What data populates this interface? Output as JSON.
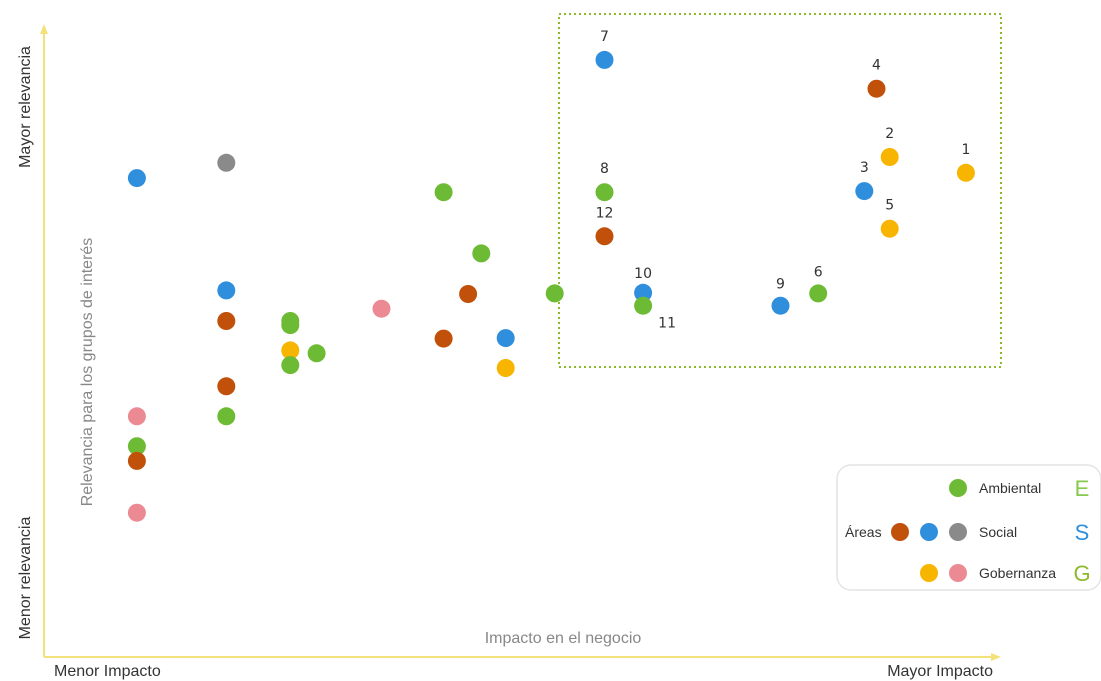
{
  "chart_data": {
    "type": "scatter",
    "xlabel": "Impacto en el negocio",
    "ylabel": "Relevancia para los grupos de interés",
    "x_min_label": "Menor Impacto",
    "x_max_label": "Mayor Impacto",
    "y_min_label": "Menor relevancia",
    "y_max_label": "Mayor relevancia",
    "xlim": [
      0,
      100
    ],
    "ylim": [
      0,
      100
    ],
    "grid": false,
    "legend_position": "bottom-right",
    "colors": {
      "ambiental": "#6dbb35",
      "social_brown": "#c0500a",
      "social_blue": "#2f8fdd",
      "social_grey": "#8a8a8a",
      "gob_yellow": "#f7b500",
      "gob_pink": "#ec8a94",
      "axis": "#f3e27a",
      "highlight": "#8dba2c"
    },
    "legend": {
      "areas_label": "Áreas",
      "rows": [
        {
          "label": "Ambiental",
          "letter": "E",
          "letter_color": "#86c94d",
          "colors": [
            "ambiental"
          ]
        },
        {
          "label": "Social",
          "letter": "S",
          "letter_color": "#2f8fdd",
          "colors": [
            "social_brown",
            "social_blue",
            "social_grey"
          ]
        },
        {
          "label": "Gobernanza",
          "letter": "G",
          "letter_color": "#8dba2c",
          "colors": [
            "gob_yellow",
            "gob_pink"
          ]
        }
      ]
    },
    "points": [
      {
        "x": 8.7,
        "y": 76.0,
        "c": "social_blue"
      },
      {
        "x": 18.2,
        "y": 78.6,
        "c": "social_grey"
      },
      {
        "x": 18.2,
        "y": 56.9,
        "c": "social_blue"
      },
      {
        "x": 18.2,
        "y": 51.7,
        "c": "social_brown"
      },
      {
        "x": 18.2,
        "y": 40.6,
        "c": "social_brown"
      },
      {
        "x": 18.2,
        "y": 35.5,
        "c": "ambiental"
      },
      {
        "x": 25.0,
        "y": 51.7,
        "c": "ambiental"
      },
      {
        "x": 25.0,
        "y": 51.0,
        "c": "ambiental"
      },
      {
        "x": 25.0,
        "y": 46.7,
        "c": "gob_yellow"
      },
      {
        "x": 25.0,
        "y": 44.2,
        "c": "ambiental"
      },
      {
        "x": 27.8,
        "y": 46.2,
        "c": "ambiental"
      },
      {
        "x": 8.7,
        "y": 35.5,
        "c": "gob_pink"
      },
      {
        "x": 8.7,
        "y": 30.4,
        "c": "ambiental"
      },
      {
        "x": 8.7,
        "y": 27.9,
        "c": "social_brown"
      },
      {
        "x": 8.7,
        "y": 19.1,
        "c": "gob_pink"
      },
      {
        "x": 34.7,
        "y": 53.8,
        "c": "gob_pink"
      },
      {
        "x": 41.3,
        "y": 73.6,
        "c": "ambiental"
      },
      {
        "x": 45.3,
        "y": 63.2,
        "c": "ambiental"
      },
      {
        "x": 43.9,
        "y": 56.3,
        "c": "social_brown"
      },
      {
        "x": 41.3,
        "y": 48.7,
        "c": "social_brown"
      },
      {
        "x": 47.9,
        "y": 48.8,
        "c": "social_blue"
      },
      {
        "x": 47.9,
        "y": 43.7,
        "c": "gob_yellow"
      },
      {
        "x": 53.1,
        "y": 56.4,
        "c": "ambiental"
      },
      {
        "x": 58.4,
        "y": 96.1,
        "c": "social_blue",
        "label": "7"
      },
      {
        "x": 58.4,
        "y": 73.6,
        "c": "ambiental",
        "label": "8"
      },
      {
        "x": 58.4,
        "y": 66.1,
        "c": "social_brown",
        "label": "12"
      },
      {
        "x": 62.5,
        "y": 56.5,
        "c": "social_blue",
        "label": "10"
      },
      {
        "x": 62.5,
        "y": 54.3,
        "c": "ambiental",
        "label": "11"
      },
      {
        "x": 77.1,
        "y": 54.3,
        "c": "social_blue",
        "label": "9"
      },
      {
        "x": 81.1,
        "y": 56.4,
        "c": "ambiental",
        "label": "6"
      },
      {
        "x": 87.3,
        "y": 91.2,
        "c": "social_brown",
        "label": "4"
      },
      {
        "x": 88.7,
        "y": 79.6,
        "c": "gob_yellow",
        "label": "2"
      },
      {
        "x": 86.0,
        "y": 73.8,
        "c": "social_blue",
        "label": "3"
      },
      {
        "x": 88.7,
        "y": 67.4,
        "c": "gob_yellow",
        "label": "5"
      },
      {
        "x": 96.8,
        "y": 76.9,
        "c": "gob_yellow",
        "label": "1"
      }
    ]
  }
}
